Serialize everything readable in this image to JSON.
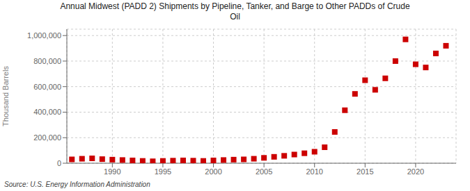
{
  "chart_data": {
    "type": "scatter",
    "title": "Annual Midwest (PADD 2) Shipments by Pipeline, Tanker, and Barge to Other PADDs of Crude\nOil",
    "ylabel": "Thousand Barrels",
    "annotations": [
      "Source: U.S. Energy Information Administration"
    ],
    "x": [
      1986,
      1987,
      1988,
      1989,
      1990,
      1991,
      1992,
      1993,
      1994,
      1995,
      1996,
      1997,
      1998,
      1999,
      2000,
      2001,
      2002,
      2003,
      2004,
      2005,
      2006,
      2007,
      2008,
      2009,
      2010,
      2011,
      2012,
      2013,
      2014,
      2015,
      2016,
      2017,
      2018,
      2019,
      2020,
      2021,
      2022,
      2023
    ],
    "values": [
      30000,
      35000,
      38000,
      32000,
      28000,
      25000,
      22000,
      18000,
      15000,
      18000,
      20000,
      22000,
      20000,
      18000,
      22000,
      25000,
      28000,
      30000,
      35000,
      42000,
      50000,
      58000,
      68000,
      78000,
      90000,
      125000,
      245000,
      415000,
      543000,
      650000,
      575000,
      665000,
      800000,
      970000,
      775000,
      750000,
      860000,
      920000
    ],
    "color": "#cc0000",
    "marker": "square",
    "xlim": [
      1985.5,
      2024
    ],
    "xticks": [
      1990,
      1995,
      2000,
      2005,
      2010,
      2015,
      2020
    ],
    "ylim": [
      0,
      1050000
    ],
    "yticks": [
      0,
      {
        "value": 200000,
        "label": "200,000"
      },
      {
        "value": 400000,
        "label": "400,000"
      },
      {
        "value": 600000,
        "label": "600,000"
      },
      {
        "value": 800000,
        "label": "800,000"
      },
      {
        "value": 1000000,
        "label": "1,000,000"
      }
    ],
    "grid": true
  }
}
